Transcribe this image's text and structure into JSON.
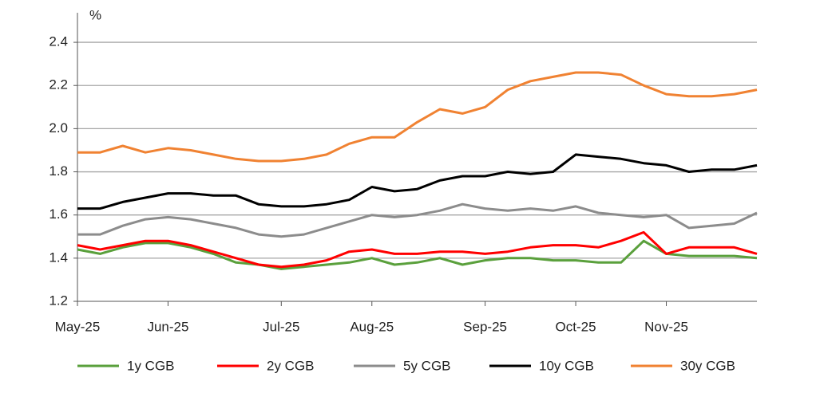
{
  "chart_data": {
    "type": "line",
    "y_label": "%",
    "categories": [
      "May-25",
      null,
      null,
      null,
      "Jun-25",
      null,
      null,
      null,
      null,
      "Jul-25",
      null,
      null,
      null,
      "Aug-25",
      null,
      null,
      null,
      null,
      "Sep-25",
      null,
      null,
      null,
      "Oct-25",
      null,
      null,
      null,
      "Nov-25",
      null,
      null,
      null,
      null
    ],
    "series": [
      {
        "name": "1y CGB",
        "color": "#5aa03c",
        "values": [
          1.44,
          1.42,
          1.45,
          1.47,
          1.47,
          1.45,
          1.42,
          1.38,
          1.37,
          1.35,
          1.36,
          1.37,
          1.38,
          1.4,
          1.37,
          1.38,
          1.4,
          1.37,
          1.39,
          1.4,
          1.4,
          1.39,
          1.39,
          1.38,
          1.38,
          1.48,
          1.42,
          1.41,
          1.41,
          1.41,
          1.4
        ]
      },
      {
        "name": "2y CGB",
        "color": "#ff0000",
        "values": [
          1.46,
          1.44,
          1.46,
          1.48,
          1.48,
          1.46,
          1.43,
          1.4,
          1.37,
          1.36,
          1.37,
          1.39,
          1.43,
          1.44,
          1.42,
          1.42,
          1.43,
          1.43,
          1.42,
          1.43,
          1.45,
          1.46,
          1.46,
          1.45,
          1.48,
          1.52,
          1.42,
          1.45,
          1.45,
          1.45,
          1.42
        ]
      },
      {
        "name": "5y CGB",
        "color": "#8c8c8c",
        "values": [
          1.51,
          1.51,
          1.55,
          1.58,
          1.59,
          1.58,
          1.56,
          1.54,
          1.51,
          1.5,
          1.51,
          1.54,
          1.57,
          1.6,
          1.59,
          1.6,
          1.62,
          1.65,
          1.63,
          1.62,
          1.63,
          1.62,
          1.64,
          1.61,
          1.6,
          1.59,
          1.6,
          1.54,
          1.55,
          1.56,
          1.61
        ]
      },
      {
        "name": "10y CGB",
        "color": "#000000",
        "values": [
          1.63,
          1.63,
          1.66,
          1.68,
          1.7,
          1.7,
          1.69,
          1.69,
          1.65,
          1.64,
          1.64,
          1.65,
          1.67,
          1.73,
          1.71,
          1.72,
          1.76,
          1.78,
          1.78,
          1.8,
          1.79,
          1.8,
          1.88,
          1.87,
          1.86,
          1.84,
          1.83,
          1.8,
          1.81,
          1.81,
          1.83
        ]
      },
      {
        "name": "30y CGB",
        "color": "#f08232",
        "values": [
          1.89,
          1.89,
          1.92,
          1.89,
          1.91,
          1.9,
          1.88,
          1.86,
          1.85,
          1.85,
          1.86,
          1.88,
          1.93,
          1.96,
          1.96,
          2.03,
          2.09,
          2.07,
          2.1,
          2.18,
          2.22,
          2.24,
          2.26,
          2.26,
          2.25,
          2.2,
          2.16,
          2.15,
          2.15,
          2.16,
          2.18
        ]
      }
    ],
    "ylim": [
      1.2,
      2.5
    ],
    "yticks": [
      {
        "value": 1.2,
        "label": "1.2"
      },
      1.4,
      1.6,
      1.8,
      {
        "value": 2,
        "label": "2.0"
      },
      2.2,
      2.4
    ],
    "grid": true,
    "legend": "bottom"
  }
}
